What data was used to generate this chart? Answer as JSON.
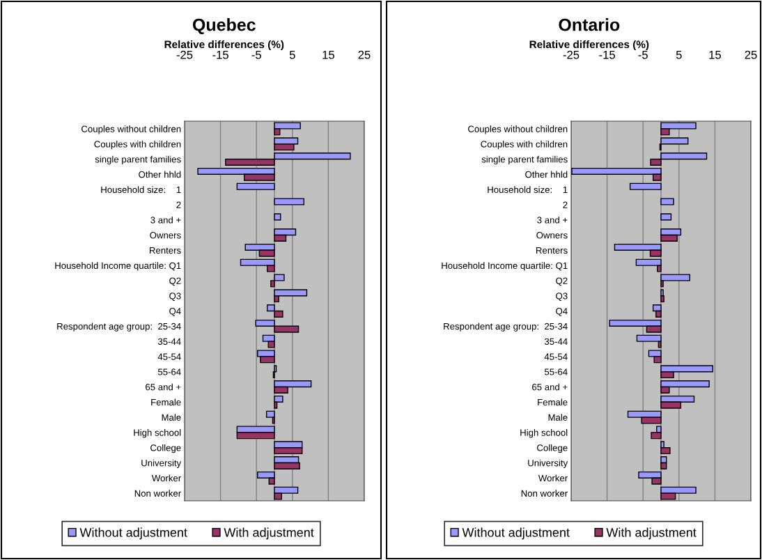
{
  "chart_data": [
    {
      "type": "bar",
      "orientation": "horizontal",
      "title": "Quebec",
      "subtitle": "Relative differences (%)",
      "categories": [
        "Couples without children",
        "Couples with children",
        "single parent families",
        "Other hhld",
        "Household size:    1",
        "2",
        "3 and +",
        "Owners",
        "Renters",
        "Household Income quartile: Q1",
        "Q2",
        "Q3",
        "Q4",
        "Respondent age group:  25-34",
        "35-44",
        "45-54",
        "55-64",
        "65 and +",
        "Female",
        "Male",
        "High school",
        "College",
        "University",
        "Worker",
        "Non worker"
      ],
      "series": [
        {
          "name": "Without adjustment",
          "color": "#9999ff",
          "values": [
            7.2,
            6.5,
            21.1,
            -21.3,
            -10.4,
            8.2,
            1.7,
            5.9,
            -8.1,
            -9.4,
            2.7,
            9.0,
            -2.0,
            -5.2,
            -3.2,
            -4.7,
            0.5,
            10.2,
            2.3,
            -2.2,
            -10.4,
            7.7,
            6.7,
            -4.7,
            6.5
          ]
        },
        {
          "name": "With adjustment",
          "color": "#993366",
          "values": [
            1.5,
            5.4,
            -13.6,
            -8.4,
            null,
            null,
            null,
            3.2,
            -4.2,
            -2.0,
            -1.0,
            1.2,
            2.3,
            6.7,
            -1.7,
            -3.9,
            -0.3,
            3.7,
            0.7,
            -0.5,
            -10.4,
            7.7,
            7.0,
            -1.5,
            2.0
          ]
        }
      ],
      "xlim": [
        -25,
        25
      ],
      "xticks": [
        -25,
        -15,
        -5,
        5,
        15,
        25
      ],
      "grid": "x",
      "legend": "bottom"
    },
    {
      "type": "bar",
      "orientation": "horizontal",
      "title": "Ontario",
      "subtitle": "Relative differences (%)",
      "categories": [
        "Couples without children",
        "Couples with children",
        "single parent families",
        "Other hhld",
        "Household size:    1",
        "2",
        "3 and +",
        "Owners",
        "Renters",
        "Household Income quartile: Q1",
        "Q2",
        "Q3",
        "Q4",
        "Respondent age group:  25-34",
        "35-44",
        "45-54",
        "55-64",
        "65 and +",
        "Female",
        "Male",
        "High school",
        "College",
        "University",
        "Worker",
        "Non worker"
      ],
      "series": [
        {
          "name": "Without adjustment",
          "color": "#9999ff",
          "values": [
            9.7,
            7.5,
            12.7,
            -24.8,
            -8.6,
            3.5,
            2.8,
            5.5,
            -12.9,
            -6.9,
            8.0,
            0.6,
            -2.2,
            -14.3,
            -6.7,
            -3.4,
            14.4,
            13.4,
            9.2,
            -9.2,
            -1.2,
            0.8,
            1.5,
            -6.2,
            9.7
          ]
        },
        {
          "name": "With adjustment",
          "color": "#993366",
          "values": [
            2.3,
            -0.3,
            -2.9,
            -2.2,
            null,
            null,
            null,
            4.5,
            -3.0,
            -1.0,
            0.6,
            0.8,
            -1.4,
            -4.0,
            -0.7,
            -1.9,
            3.5,
            2.3,
            5.5,
            -5.4,
            -2.7,
            2.5,
            1.5,
            -2.5,
            4.0
          ]
        }
      ],
      "xlim": [
        -25,
        25
      ],
      "xticks": [
        -25,
        -15,
        -5,
        5,
        15,
        25
      ],
      "grid": "x",
      "legend": "bottom"
    }
  ]
}
